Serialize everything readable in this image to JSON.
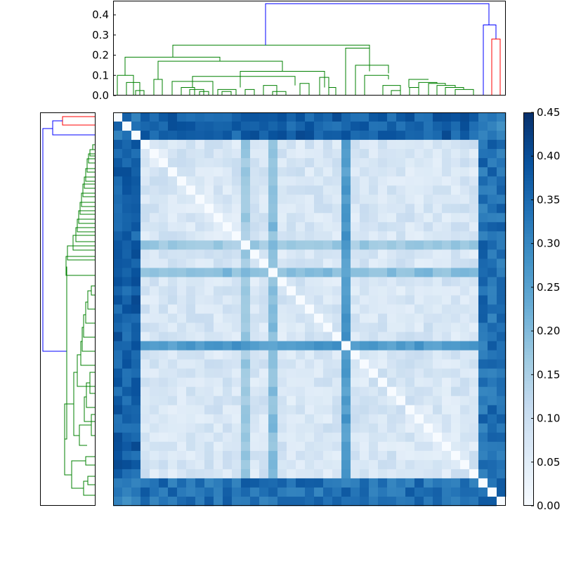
{
  "chart_data": {
    "type": "heatmap",
    "title": "",
    "matrix_size": 43,
    "colormap": "Blues",
    "value_range": [
      0,
      0.45
    ],
    "colorbar": {
      "ticks": [
        "0.00",
        "0.05",
        "0.10",
        "0.15",
        "0.20",
        "0.25",
        "0.30",
        "0.35",
        "0.40",
        "0.45"
      ],
      "tick_values": [
        0,
        0.05,
        0.1,
        0.15,
        0.2,
        0.25,
        0.3,
        0.35,
        0.4,
        0.45
      ]
    },
    "top_dendrogram": {
      "ylim": [
        0,
        0.47
      ],
      "y_ticks": [
        "0.0",
        "0.1",
        "0.2",
        "0.3",
        "0.4"
      ],
      "y_tick_values": [
        0,
        0.1,
        0.2,
        0.3,
        0.4
      ],
      "link_colors": {
        "green": "#008000",
        "blue": "#0000ff",
        "red": "#ff0000"
      }
    },
    "left_dendrogram": {
      "orientation": "left",
      "link_colors": {
        "green": "#008000",
        "blue": "#0000ff",
        "red": "#ff0000"
      }
    },
    "grid": false
  }
}
